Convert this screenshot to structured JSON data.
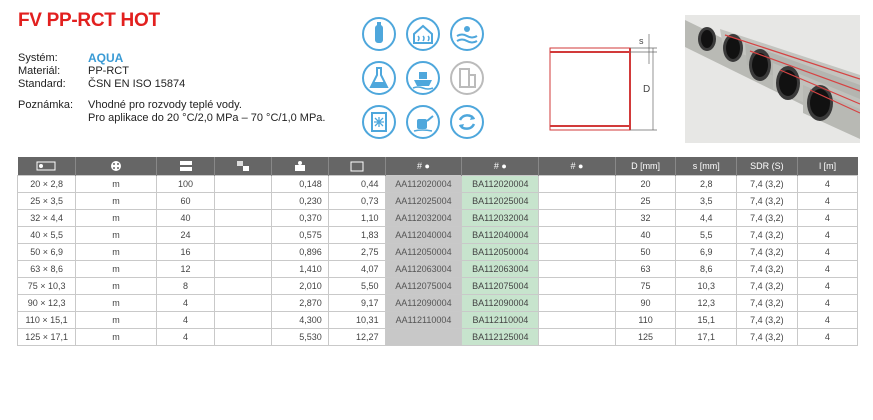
{
  "title": "FV PP-RCT HOT",
  "info": {
    "system_label": "Systém:",
    "system_value": "AQUA",
    "material_label": "Materiál:",
    "material_value": "PP-RCT",
    "standard_label": "Standard:",
    "standard_value": "ČSN EN ISO 15874",
    "note_label": "Poznámka:",
    "note_line1": "Vhodné pro rozvody teplé vody.",
    "note_line2": "Pro aplikace do 20 °C/2,0 MPa – 70 °C/1,0 MPa."
  },
  "icons": [
    "drinking-water-icon",
    "house-heating-icon",
    "swimming-pool-icon",
    "chemical-flask-icon",
    "ship-icon",
    "building-grey-icon",
    "cooling-icon",
    "watering-can-icon",
    "recycle-icon"
  ],
  "diagram": {
    "s_label": "s",
    "d_label": "D"
  },
  "table": {
    "headers": [
      "",
      "",
      "",
      "",
      "",
      "",
      "# ●",
      "# ●",
      "# ●",
      "D [mm]",
      "s [mm]",
      "SDR (S)",
      "l [m]"
    ],
    "header_icons": [
      "dimension-icon",
      "unit-icon",
      "package-icon",
      "pallet-icon",
      "weight-icon",
      "volume-icon"
    ],
    "rows": [
      [
        "20 × 2,8",
        "m",
        "100",
        "",
        "0,148",
        "0,44",
        "AA112020004",
        "BA112020004",
        "",
        "20",
        "2,8",
        "7,4 (3,2)",
        "4"
      ],
      [
        "25 × 3,5",
        "m",
        "60",
        "",
        "0,230",
        "0,73",
        "AA112025004",
        "BA112025004",
        "",
        "25",
        "3,5",
        "7,4 (3,2)",
        "4"
      ],
      [
        "32 × 4,4",
        "m",
        "40",
        "",
        "0,370",
        "1,10",
        "AA112032004",
        "BA112032004",
        "",
        "32",
        "4,4",
        "7,4 (3,2)",
        "4"
      ],
      [
        "40 × 5,5",
        "m",
        "24",
        "",
        "0,575",
        "1,83",
        "AA112040004",
        "BA112040004",
        "",
        "40",
        "5,5",
        "7,4 (3,2)",
        "4"
      ],
      [
        "50 × 6,9",
        "m",
        "16",
        "",
        "0,896",
        "2,75",
        "AA112050004",
        "BA112050004",
        "",
        "50",
        "6,9",
        "7,4 (3,2)",
        "4"
      ],
      [
        "63 × 8,6",
        "m",
        "12",
        "",
        "1,410",
        "4,07",
        "AA112063004",
        "BA112063004",
        "",
        "63",
        "8,6",
        "7,4 (3,2)",
        "4"
      ],
      [
        "75 × 10,3",
        "m",
        "8",
        "",
        "2,010",
        "5,50",
        "AA112075004",
        "BA112075004",
        "",
        "75",
        "10,3",
        "7,4 (3,2)",
        "4"
      ],
      [
        "90 × 12,3",
        "m",
        "4",
        "",
        "2,870",
        "9,17",
        "AA112090004",
        "BA112090004",
        "",
        "90",
        "12,3",
        "7,4 (3,2)",
        "4"
      ],
      [
        "110 × 15,1",
        "m",
        "4",
        "",
        "4,300",
        "10,31",
        "AA112110004",
        "BA112110004",
        "",
        "110",
        "15,1",
        "7,4 (3,2)",
        "4"
      ],
      [
        "125 × 17,1",
        "m",
        "4",
        "",
        "5,530",
        "12,27",
        "",
        "BA112125004",
        "",
        "125",
        "17,1",
        "7,4 (3,2)",
        "4"
      ]
    ]
  },
  "colors": {
    "title": "#e2201f",
    "aqua": "#3a9bd5",
    "header_bg": "#666666",
    "code_a_bg": "#c8c8c8",
    "code_b_bg": "#c7e4cd"
  }
}
